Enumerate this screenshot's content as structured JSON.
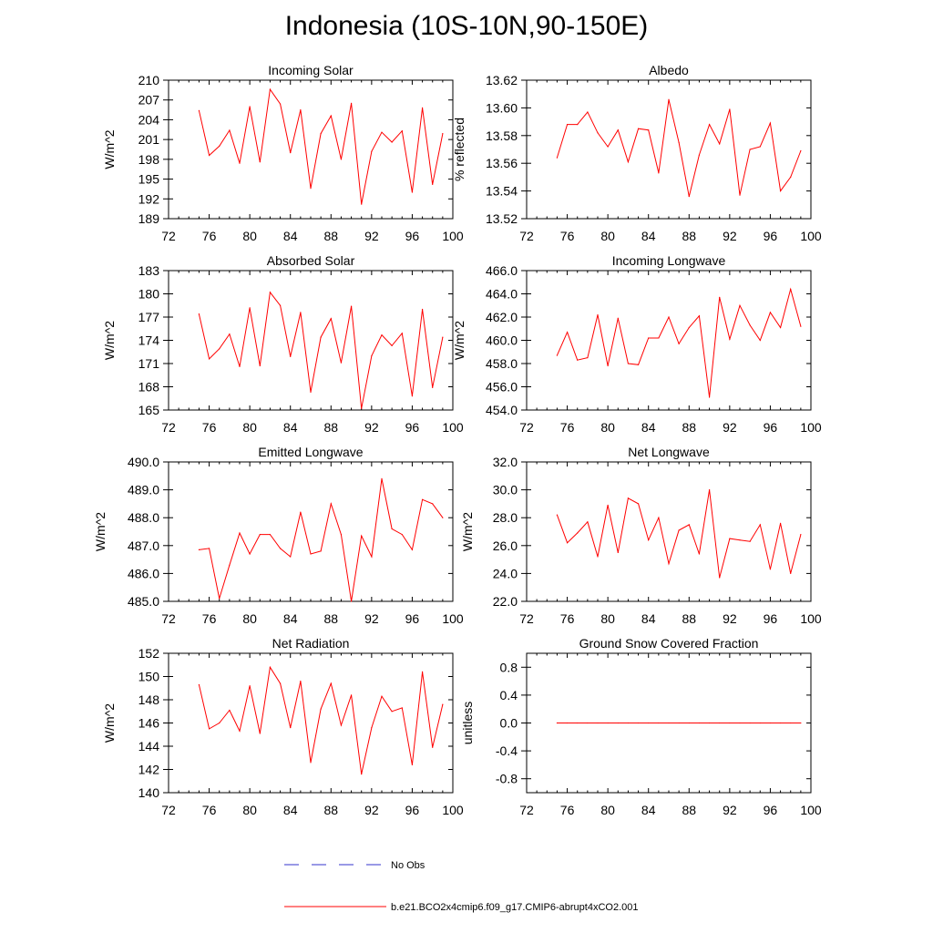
{
  "title": "Indonesia (10S-10N,90-150E)",
  "colors": {
    "model": "#ff0000",
    "obs": "#3333cc",
    "axis": "#000000"
  },
  "legend": {
    "obs_label": "No Obs",
    "model_label": "b.e21.BCO2x4cmip6.f09_g17.CMIP6-abrupt4xCO2.001"
  },
  "chart_data": [
    {
      "type": "line",
      "title": "Incoming Solar",
      "ylabel": "W/m^2",
      "xlim": [
        72,
        100
      ],
      "xticks": [
        72,
        76,
        80,
        84,
        88,
        92,
        96,
        100
      ],
      "xtick_labels": [
        "72",
        "76",
        "80",
        "84",
        "88",
        "92",
        "96",
        "100"
      ],
      "ylim": [
        189,
        210
      ],
      "yticks": [
        189,
        192,
        195,
        198,
        201,
        204,
        207,
        210
      ],
      "ytick_labels": [
        "189",
        "192",
        "195",
        "198",
        "201",
        "204",
        "207",
        "210"
      ],
      "x": [
        75,
        76,
        77,
        78,
        79,
        80,
        81,
        82,
        83,
        84,
        85,
        86,
        87,
        88,
        89,
        90,
        91,
        92,
        93,
        94,
        95,
        96,
        97,
        98,
        99
      ],
      "values": [
        205.4,
        198.6,
        200.0,
        202.4,
        197.4,
        206.0,
        197.6,
        208.6,
        206.4,
        199.0,
        205.5,
        193.6,
        201.9,
        204.6,
        198.0,
        206.5,
        191.2,
        199.2,
        202.1,
        200.6,
        202.3,
        193.0,
        205.8,
        194.2,
        201.9
      ]
    },
    {
      "type": "line",
      "title": "Albedo",
      "ylabel": "% reflected",
      "xlim": [
        72,
        100
      ],
      "xticks": [
        72,
        76,
        80,
        84,
        88,
        92,
        96,
        100
      ],
      "xtick_labels": [
        "72",
        "76",
        "80",
        "84",
        "88",
        "92",
        "96",
        "100"
      ],
      "ylim": [
        13.52,
        13.62
      ],
      "yticks": [
        13.52,
        13.54,
        13.56,
        13.58,
        13.6,
        13.62
      ],
      "ytick_labels": [
        "13.52",
        "13.54",
        "13.56",
        "13.58",
        "13.60",
        "13.62"
      ],
      "x": [
        75,
        76,
        77,
        78,
        79,
        80,
        81,
        82,
        83,
        84,
        85,
        86,
        87,
        88,
        89,
        90,
        91,
        92,
        93,
        94,
        95,
        96,
        97,
        98,
        99
      ],
      "values": [
        13.564,
        13.588,
        13.588,
        13.597,
        13.582,
        13.572,
        13.584,
        13.561,
        13.585,
        13.584,
        13.553,
        13.606,
        13.575,
        13.536,
        13.566,
        13.588,
        13.574,
        13.599,
        13.537,
        13.57,
        13.572,
        13.589,
        13.54,
        13.55,
        13.569
      ]
    },
    {
      "type": "line",
      "title": "Absorbed Solar",
      "ylabel": "W/m^2",
      "xlim": [
        72,
        100
      ],
      "xticks": [
        72,
        76,
        80,
        84,
        88,
        92,
        96,
        100
      ],
      "xtick_labels": [
        "72",
        "76",
        "80",
        "84",
        "88",
        "92",
        "96",
        "100"
      ],
      "ylim": [
        165,
        183
      ],
      "yticks": [
        165,
        168,
        171,
        174,
        177,
        180,
        183
      ],
      "ytick_labels": [
        "165",
        "168",
        "171",
        "174",
        "177",
        "180",
        "183"
      ],
      "x": [
        75,
        76,
        77,
        78,
        79,
        80,
        81,
        82,
        83,
        84,
        85,
        86,
        87,
        88,
        89,
        90,
        91,
        92,
        93,
        94,
        95,
        96,
        97,
        98,
        99
      ],
      "values": [
        177.4,
        171.6,
        172.9,
        174.8,
        170.6,
        178.2,
        170.7,
        180.2,
        178.5,
        171.9,
        177.6,
        167.3,
        174.4,
        176.8,
        171.1,
        178.4,
        165.2,
        172.0,
        174.7,
        173.3,
        174.9,
        166.8,
        178.0,
        167.9,
        174.4
      ]
    },
    {
      "type": "line",
      "title": "Incoming Longwave",
      "ylabel": "W/m^2",
      "xlim": [
        72,
        100
      ],
      "xticks": [
        72,
        76,
        80,
        84,
        88,
        92,
        96,
        100
      ],
      "xtick_labels": [
        "72",
        "76",
        "80",
        "84",
        "88",
        "92",
        "96",
        "100"
      ],
      "ylim": [
        454,
        466
      ],
      "yticks": [
        454,
        456,
        458,
        460,
        462,
        464,
        466
      ],
      "ytick_labels": [
        "454.0",
        "456.0",
        "458.0",
        "460.0",
        "462.0",
        "464.0",
        "466.0"
      ],
      "x": [
        75,
        76,
        77,
        78,
        79,
        80,
        81,
        82,
        83,
        84,
        85,
        86,
        87,
        88,
        89,
        90,
        91,
        92,
        93,
        94,
        95,
        96,
        97,
        98,
        99
      ],
      "values": [
        458.7,
        460.7,
        458.3,
        458.5,
        462.2,
        457.8,
        461.9,
        458.0,
        457.9,
        460.2,
        460.2,
        462.0,
        459.7,
        461.1,
        462.1,
        455.1,
        463.7,
        460.1,
        463.0,
        461.3,
        460.0,
        462.4,
        461.1,
        464.4,
        461.2
      ]
    },
    {
      "type": "line",
      "title": "Emitted Longwave",
      "ylabel": "W/m^2",
      "xlim": [
        72,
        100
      ],
      "xticks": [
        72,
        76,
        80,
        84,
        88,
        92,
        96,
        100
      ],
      "xtick_labels": [
        "72",
        "76",
        "80",
        "84",
        "88",
        "92",
        "96",
        "100"
      ],
      "ylim": [
        485,
        490
      ],
      "yticks": [
        485,
        486,
        487,
        488,
        489,
        490
      ],
      "ytick_labels": [
        "485.0",
        "486.0",
        "487.0",
        "488.0",
        "489.0",
        "490.0"
      ],
      "x": [
        75,
        76,
        77,
        78,
        79,
        80,
        81,
        82,
        83,
        84,
        85,
        86,
        87,
        88,
        89,
        90,
        91,
        92,
        93,
        94,
        95,
        96,
        97,
        98,
        99
      ],
      "values": [
        486.85,
        486.9,
        485.1,
        486.3,
        487.45,
        486.7,
        487.4,
        487.4,
        486.9,
        486.6,
        488.2,
        486.7,
        486.8,
        488.5,
        487.4,
        485.0,
        487.35,
        486.6,
        489.4,
        487.6,
        487.4,
        486.85,
        488.65,
        488.5,
        488.0
      ]
    },
    {
      "type": "line",
      "title": "Net Longwave",
      "ylabel": "W/m^2",
      "xlim": [
        72,
        100
      ],
      "xticks": [
        72,
        76,
        80,
        84,
        88,
        92,
        96,
        100
      ],
      "xtick_labels": [
        "72",
        "76",
        "80",
        "84",
        "88",
        "92",
        "96",
        "100"
      ],
      "ylim": [
        22,
        32
      ],
      "yticks": [
        22,
        24,
        26,
        28,
        30,
        32
      ],
      "ytick_labels": [
        "22.0",
        "24.0",
        "26.0",
        "28.0",
        "30.0",
        "32.0"
      ],
      "x": [
        75,
        76,
        77,
        78,
        79,
        80,
        81,
        82,
        83,
        84,
        85,
        86,
        87,
        88,
        89,
        90,
        91,
        92,
        93,
        94,
        95,
        96,
        97,
        98,
        99
      ],
      "values": [
        28.2,
        26.2,
        26.9,
        27.7,
        25.2,
        28.9,
        25.5,
        29.4,
        29.0,
        26.4,
        28.0,
        24.7,
        27.1,
        27.5,
        25.4,
        30.0,
        23.7,
        26.5,
        26.4,
        26.3,
        27.5,
        24.3,
        27.6,
        24.0,
        26.8
      ]
    },
    {
      "type": "line",
      "title": "Net Radiation",
      "ylabel": "W/m^2",
      "xlim": [
        72,
        100
      ],
      "xticks": [
        72,
        76,
        80,
        84,
        88,
        92,
        96,
        100
      ],
      "xtick_labels": [
        "72",
        "76",
        "80",
        "84",
        "88",
        "92",
        "96",
        "100"
      ],
      "ylim": [
        140,
        152
      ],
      "yticks": [
        140,
        142,
        144,
        146,
        148,
        150,
        152
      ],
      "ytick_labels": [
        "140",
        "142",
        "144",
        "146",
        "148",
        "150",
        "152"
      ],
      "x": [
        75,
        76,
        77,
        78,
        79,
        80,
        81,
        82,
        83,
        84,
        85,
        86,
        87,
        88,
        89,
        90,
        91,
        92,
        93,
        94,
        95,
        96,
        97,
        98,
        99
      ],
      "values": [
        149.3,
        145.5,
        146.0,
        147.1,
        145.3,
        149.2,
        145.1,
        150.8,
        149.4,
        145.6,
        149.6,
        142.6,
        147.2,
        149.4,
        145.8,
        148.4,
        141.6,
        145.6,
        148.3,
        147.0,
        147.3,
        142.4,
        150.4,
        143.9,
        147.6
      ]
    },
    {
      "type": "line",
      "title": "Ground Snow Covered Fraction",
      "ylabel": "unitless",
      "xlim": [
        72,
        100
      ],
      "xticks": [
        72,
        76,
        80,
        84,
        88,
        92,
        96,
        100
      ],
      "xtick_labels": [
        "72",
        "76",
        "80",
        "84",
        "88",
        "92",
        "96",
        "100"
      ],
      "ylim": [
        -1.0,
        1.0
      ],
      "yticks": [
        -0.8,
        -0.4,
        0.0,
        0.4,
        0.8
      ],
      "ytick_labels": [
        "-0.8",
        "-0.4",
        "0.0",
        "0.4",
        "0.8"
      ],
      "x": [
        75,
        76,
        77,
        78,
        79,
        80,
        81,
        82,
        83,
        84,
        85,
        86,
        87,
        88,
        89,
        90,
        91,
        92,
        93,
        94,
        95,
        96,
        97,
        98,
        99
      ],
      "values": [
        0,
        0,
        0,
        0,
        0,
        0,
        0,
        0,
        0,
        0,
        0,
        0,
        0,
        0,
        0,
        0,
        0,
        0,
        0,
        0,
        0,
        0,
        0,
        0,
        0
      ]
    }
  ]
}
